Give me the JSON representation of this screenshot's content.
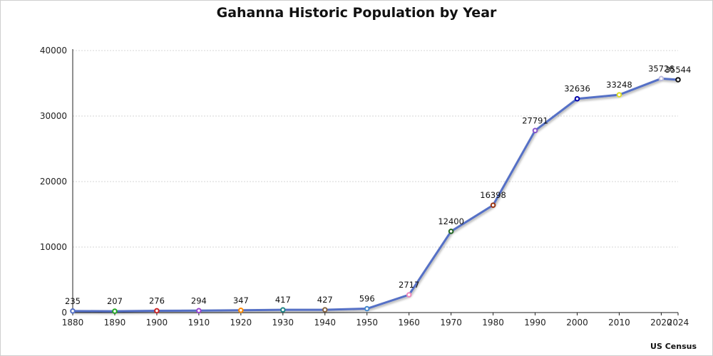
{
  "chart_data": {
    "type": "line",
    "title": "Gahanna Historic Population by Year",
    "source": "US Census",
    "xlabel": "",
    "ylabel": "",
    "x": [
      1880,
      1890,
      1900,
      1910,
      1920,
      1930,
      1940,
      1950,
      1960,
      1970,
      1980,
      1990,
      2000,
      2010,
      2020,
      2024
    ],
    "series": [
      {
        "values": [
          235,
          207,
          276,
          294,
          347,
          417,
          427,
          596,
          2717,
          12400,
          16398,
          27791,
          32636,
          33248,
          35726,
          35544
        ]
      }
    ],
    "ylim": [
      0,
      40000
    ],
    "yticks": [
      0,
      10000,
      20000,
      30000,
      40000
    ],
    "grid": true,
    "legend": "none",
    "line_color": "#5470c6",
    "marker_colors": [
      "#5470c6",
      "#22aa22",
      "#cc2222",
      "#9944cc",
      "#ff8800",
      "#228888",
      "#886644",
      "#4488cc",
      "#ee88bb",
      "#226622",
      "#993311",
      "#8855cc",
      "#0000aa",
      "#dddd22",
      "#bbbbdd",
      "#111111"
    ]
  }
}
